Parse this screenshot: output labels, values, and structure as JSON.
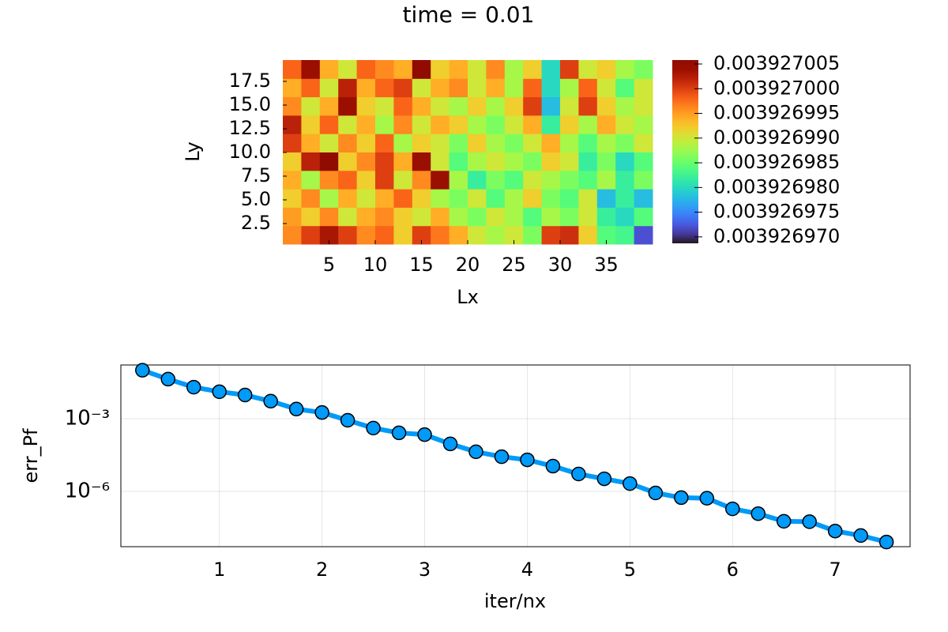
{
  "chart_data": [
    {
      "type": "heatmap",
      "title": "time = 0.01",
      "xlabel": "Lx",
      "ylabel": "Ly",
      "colormap": "turbo",
      "xlim": [
        0,
        40
      ],
      "ylim": [
        0.33,
        19.75
      ],
      "xticks": [
        5,
        10,
        15,
        20,
        25,
        30,
        35
      ],
      "yticks": [
        2.5,
        {
          "value": 5,
          "label": "5.0"
        },
        7.5,
        {
          "value": 10,
          "label": "10.0"
        },
        12.5,
        {
          "value": 15,
          "label": "15.0"
        },
        17.5
      ],
      "clim": [
        0.0039269687,
        0.0039270058
      ],
      "cticks": [
        {
          "value": 0.00392697,
          "label": "0.003926970"
        },
        0.003926975,
        {
          "value": 0.00392698,
          "label": "0.003926980"
        },
        0.003926985,
        {
          "value": 0.00392699,
          "label": "0.003926990"
        },
        0.003926995,
        {
          "value": 0.003927,
          "label": "0.003927000"
        },
        0.003927005
      ],
      "z": [
        [
          0.003926996,
          0.003927,
          0.003927003,
          0.003927,
          0.003926996,
          0.003926998,
          0.003926992,
          0.003927,
          0.003926997,
          0.003926994,
          0.00392699,
          0.003926988,
          0.00392699,
          0.003926986,
          0.003927,
          0.003927001,
          0.003926992,
          0.003926984,
          0.003926983,
          0.003926972
        ],
        [
          0.003926995,
          0.003926992,
          0.003926996,
          0.00392699,
          0.003926994,
          0.003926996,
          0.003926992,
          0.00392699,
          0.003926994,
          0.003926988,
          0.003926986,
          0.00392699,
          0.003926988,
          0.003926984,
          0.003926988,
          0.003926986,
          0.00392699,
          0.003926982,
          0.00392698,
          0.003926984
        ],
        [
          0.003926992,
          0.003926996,
          0.003926988,
          0.003926994,
          0.00392699,
          0.003926994,
          0.003926998,
          0.003926992,
          0.003926988,
          0.003926986,
          0.00392699,
          0.003926984,
          0.003926988,
          0.003926992,
          0.003926986,
          0.003926984,
          0.00392699,
          0.003926978,
          0.003926982,
          0.003926978
        ],
        [
          0.003926994,
          0.003926988,
          0.003926996,
          0.003926998,
          0.003926992,
          0.003927,
          0.00392699,
          0.003926996,
          0.003927004,
          0.003926988,
          0.003926982,
          0.003926986,
          0.003926984,
          0.00392699,
          0.003926988,
          0.003926986,
          0.003926984,
          0.003926988,
          0.003926982,
          0.003926986
        ],
        [
          0.003926992,
          0.003927002,
          0.003927005,
          0.003926992,
          0.003926996,
          0.003927,
          0.003926994,
          0.003927004,
          0.00392699,
          0.003926984,
          0.003926988,
          0.00392699,
          0.003926988,
          0.003926986,
          0.003926992,
          0.00392699,
          0.003926982,
          0.003926986,
          0.00392698,
          0.003926984
        ],
        [
          0.003927,
          0.003926994,
          0.00392699,
          0.003926996,
          0.003926992,
          0.003926998,
          0.003926988,
          0.003926992,
          0.00392699,
          0.003926986,
          0.003926992,
          0.003926988,
          0.003926986,
          0.00392699,
          0.003926994,
          0.003926988,
          0.003926984,
          0.003926988,
          0.003926986,
          0.00392699
        ],
        [
          0.003927002,
          0.003926992,
          0.003926998,
          0.00392699,
          0.003926994,
          0.003926988,
          0.003926996,
          0.00392699,
          0.003926994,
          0.003926992,
          0.003926988,
          0.003926986,
          0.00392699,
          0.003926994,
          0.003926982,
          0.003926992,
          0.003926988,
          0.003926994,
          0.00392699,
          0.003926988
        ],
        [
          0.003926996,
          0.00392699,
          0.003926994,
          0.003927004,
          0.003926992,
          0.00392699,
          0.003926998,
          0.003926994,
          0.00392699,
          0.003926988,
          0.003926992,
          0.003926988,
          0.003926992,
          0.003927,
          0.003926978,
          0.00392699,
          0.003927,
          0.003926992,
          0.003926988,
          0.00392699
        ],
        [
          0.003926994,
          0.003926998,
          0.00392699,
          0.003927002,
          0.003926994,
          0.003926998,
          0.003927,
          0.00392699,
          0.003926994,
          0.003926996,
          0.00392699,
          0.003926994,
          0.003926988,
          0.003926998,
          0.00392698,
          0.003926988,
          0.003926998,
          0.00392699,
          0.003926984,
          0.00392699
        ],
        [
          0.003926998,
          0.003927004,
          0.003926994,
          0.00392699,
          0.003926998,
          0.003926996,
          0.003926994,
          0.003927005,
          0.003926992,
          0.003926994,
          0.00392699,
          0.003926996,
          0.003926988,
          0.003926992,
          0.00392698,
          0.003927,
          0.00392699,
          0.003926992,
          0.003926988,
          0.003926986
        ]
      ]
    },
    {
      "type": "line",
      "xlabel": "iter/nx",
      "ylabel": "err_Pf",
      "color": "#009af9",
      "ylog": true,
      "grid": true,
      "x": [
        0.25,
        0.5,
        0.75,
        1,
        1.25,
        1.5,
        1.75,
        2,
        2.25,
        2.5,
        2.75,
        3,
        3.25,
        3.5,
        3.75,
        4,
        4.25,
        4.5,
        4.75,
        5,
        5.25,
        5.5,
        5.75,
        6,
        6.25,
        6.5,
        6.75,
        7,
        7.25,
        7.5
      ],
      "values": [
        0.1,
        0.043,
        0.02,
        0.013,
        0.0095,
        0.0053,
        0.0025,
        0.0018,
        0.00086,
        0.00041,
        0.00026,
        0.00022,
        9.1e-05,
        4.3e-05,
        2.7e-05,
        2e-05,
        1.1e-05,
        5.2e-06,
        3.3e-06,
        2.1e-06,
        8.6e-07,
        5.5e-07,
        5.2e-07,
        1.9e-07,
        1.2e-07,
        5.8e-08,
        5.6e-08,
        2.3e-08,
        1.5e-08,
        8.1e-09
      ],
      "xlim": [
        0.04,
        7.73
      ],
      "ylim": [
        5.2e-09,
        0.165
      ],
      "xticks": [
        1,
        2,
        3,
        4,
        5,
        6,
        7
      ],
      "yticks": [
        {
          "value": 0.001,
          "label": "10⁻³"
        },
        {
          "value": 1e-06,
          "label": "10⁻⁶"
        }
      ]
    }
  ]
}
